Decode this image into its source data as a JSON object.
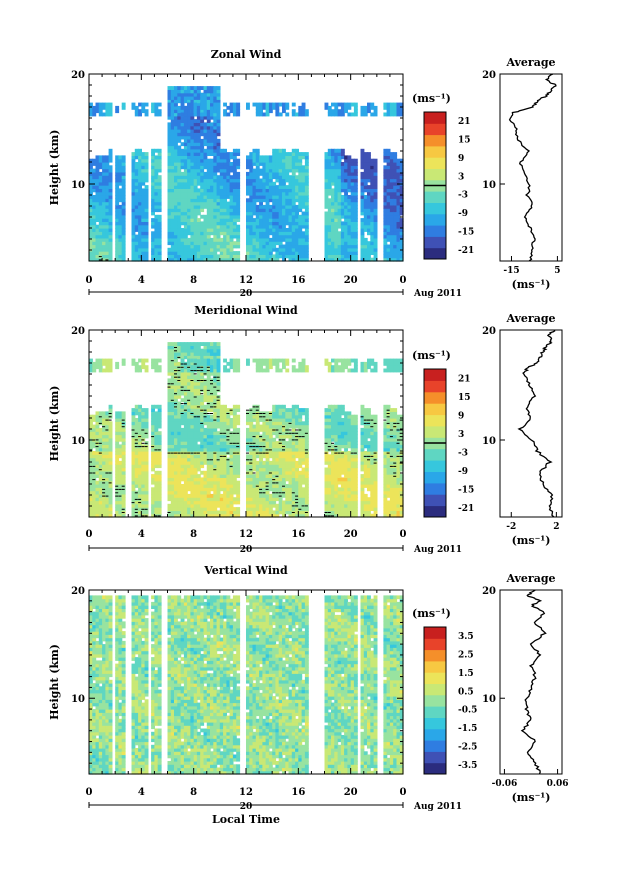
{
  "x_axis": {
    "ticks": [
      "0",
      "4",
      "8",
      "12",
      "16",
      "20",
      "0"
    ],
    "date_label": "20",
    "month_label": "Aug 2011",
    "xlabel": "Local Time"
  },
  "colorbar_unit": "(ms⁻¹)",
  "colormap": [
    "#2b2c7e",
    "#3f51b5",
    "#2f7de1",
    "#2aa7e8",
    "#36c7dd",
    "#5fd6c2",
    "#98e3a0",
    "#c9e875",
    "#ece45a",
    "#f7c842",
    "#f58f2a",
    "#e8432a",
    "#c8201f"
  ],
  "chart_data": [
    {
      "type": "heatmap",
      "name": "zonal",
      "title": "Zonal Wind",
      "ylabel": "Height (km)",
      "y_ticks": [
        "10",
        "20"
      ],
      "ylim": [
        3,
        20
      ],
      "xlim": [
        0,
        24
      ],
      "colorbar": {
        "ticks": [
          "21",
          "15",
          "9",
          "3",
          "-3",
          "-9",
          "-15",
          "-21"
        ],
        "range": [
          -24,
          24
        ],
        "contour": 0
      },
      "mean_profile": {
        "title": "Average",
        "x_ticks": [
          "-15",
          "5"
        ],
        "xlim": [
          -20,
          7
        ],
        "unit": "(ms⁻¹)",
        "heights": [
          3,
          4,
          5,
          6,
          7,
          8,
          9,
          10,
          11,
          12,
          13,
          14,
          15,
          16,
          16.5,
          17,
          17.5,
          18,
          18.5,
          19,
          19.5,
          20
        ],
        "values": [
          -7,
          -6,
          -5,
          -7,
          -9,
          -6,
          -8,
          -7,
          -10,
          -11,
          -8,
          -12,
          -13,
          -16,
          -14,
          -6,
          -4,
          0,
          2,
          4,
          0,
          3
        ]
      }
    },
    {
      "type": "heatmap",
      "name": "meridional",
      "title": "Meridional Wind",
      "ylabel": "Height (km)",
      "y_ticks": [
        "10",
        "20"
      ],
      "ylim": [
        3,
        20
      ],
      "xlim": [
        0,
        24
      ],
      "colorbar": {
        "ticks": [
          "21",
          "15",
          "9",
          "3",
          "-3",
          "-9",
          "-15",
          "-21"
        ],
        "range": [
          -24,
          24
        ],
        "contour": 0
      },
      "mean_profile": {
        "title": "Average",
        "x_ticks": [
          "-2",
          "2"
        ],
        "xlim": [
          -3,
          2.5
        ],
        "unit": "(ms⁻¹)",
        "heights": [
          3,
          4,
          5,
          6,
          7,
          8,
          9,
          10,
          11,
          12,
          13,
          14,
          15,
          16,
          16.5,
          17,
          17.5,
          18,
          18.5,
          19,
          19.5,
          20
        ],
        "values": [
          1.8,
          1.4,
          1.6,
          0.8,
          0.5,
          1.4,
          0.3,
          -0.2,
          -1.2,
          -0.3,
          -0.6,
          0,
          -0.4,
          -0.9,
          -0.6,
          0.2,
          0.6,
          0.8,
          1.1,
          1.6,
          1.3,
          1.8
        ]
      }
    },
    {
      "type": "heatmap",
      "name": "vertical",
      "title": "Vertical Wind",
      "ylabel": "Height (km)",
      "y_ticks": [
        "10",
        "20"
      ],
      "ylim": [
        3,
        20
      ],
      "xlim": [
        0,
        24
      ],
      "colorbar": {
        "ticks": [
          "3.5",
          "2.5",
          "1.5",
          "0.5",
          "-0.5",
          "-1.5",
          "-2.5",
          "-3.5"
        ],
        "range": [
          -4,
          4
        ],
        "contour": null
      },
      "mean_profile": {
        "title": "Average",
        "x_ticks": [
          "-0.06",
          "0.06"
        ],
        "xlim": [
          -0.07,
          0.07
        ],
        "unit": "(ms⁻¹)",
        "heights": [
          3,
          4,
          5,
          6,
          7,
          8,
          9,
          10,
          11,
          12,
          13,
          14,
          15,
          16,
          17,
          18,
          18.5,
          19,
          19.5,
          20
        ],
        "values": [
          0.02,
          0.01,
          -0.01,
          0.01,
          -0.02,
          0.0,
          -0.01,
          -0.01,
          0.0,
          0.01,
          0.0,
          0.02,
          0.0,
          0.03,
          0.01,
          0.03,
          0.0,
          0.02,
          -0.01,
          0.01
        ]
      }
    }
  ]
}
